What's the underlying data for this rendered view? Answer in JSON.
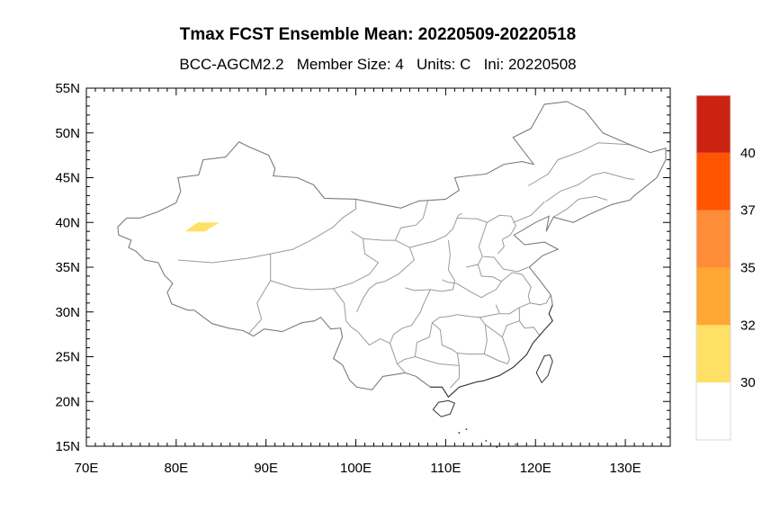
{
  "title": "Tmax FCST Ensemble Mean: 20220509-20220518",
  "subtitle": "BCC-AGCM2.2   Member Size: 4   Units: C   Ini: 20220508",
  "map": {
    "projection": "cylindrical-equidistant",
    "lon_range": [
      70,
      135
    ],
    "lat_range": [
      15,
      55
    ],
    "x_ticks": [
      {
        "value": 70,
        "label": "70E"
      },
      {
        "value": 80,
        "label": "80E"
      },
      {
        "value": 90,
        "label": "90E"
      },
      {
        "value": 100,
        "label": "100E"
      },
      {
        "value": 110,
        "label": "110E"
      },
      {
        "value": 120,
        "label": "120E"
      },
      {
        "value": 130,
        "label": "130E"
      }
    ],
    "y_ticks": [
      {
        "value": 15,
        "label": "15N"
      },
      {
        "value": 20,
        "label": "20N"
      },
      {
        "value": 25,
        "label": "25N"
      },
      {
        "value": 30,
        "label": "30N"
      },
      {
        "value": 35,
        "label": "35N"
      },
      {
        "value": 40,
        "label": "40N"
      },
      {
        "value": 45,
        "label": "45N"
      },
      {
        "value": 50,
        "label": "50N"
      },
      {
        "value": 55,
        "label": "55N"
      }
    ],
    "minor_tick_step_deg": 1,
    "boundary_color": "#9a9a9a",
    "coast_color": "#333333",
    "shaded_regions": [
      {
        "name": "tmax-30-32",
        "color": "#ffe066",
        "lonlat": [
          [
            81.0,
            39.0
          ],
          [
            83.2,
            39.0
          ],
          [
            84.8,
            40.0
          ],
          [
            82.4,
            40.0
          ]
        ]
      }
    ]
  },
  "colorbar": {
    "labels": [
      "30",
      "32",
      "35",
      "37",
      "40"
    ],
    "bins": [
      {
        "color": "#ffffff"
      },
      {
        "color": "#ffe066"
      },
      {
        "color": "#ffa733"
      },
      {
        "color": "#ff8c38"
      },
      {
        "color": "#ff5500"
      },
      {
        "color": "#cc2211"
      }
    ]
  }
}
